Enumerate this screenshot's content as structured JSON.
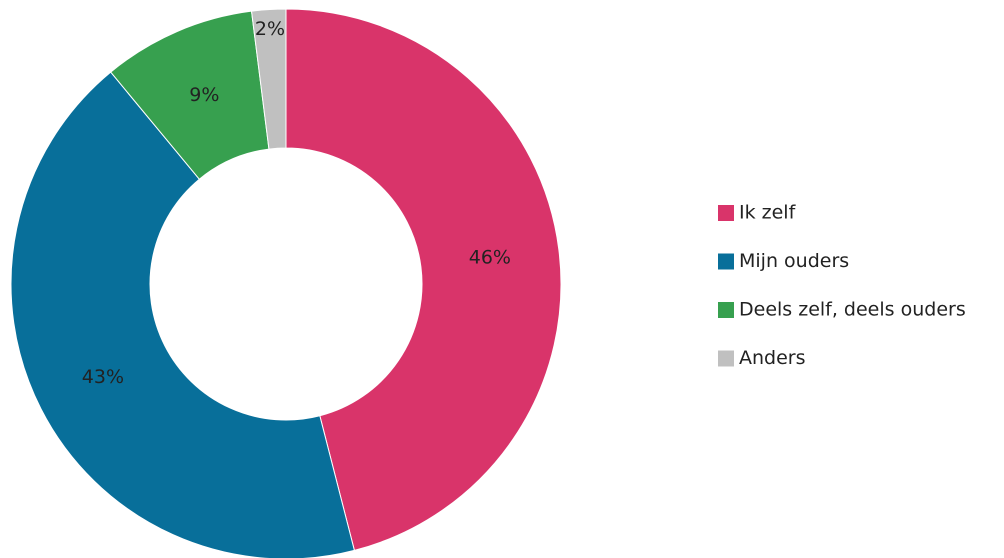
{
  "chart_data": {
    "type": "donut",
    "categories": [
      "Ik zelf",
      "Mijn ouders",
      "Deels zelf, deels ouders",
      "Anders"
    ],
    "values": [
      46,
      43,
      9,
      2
    ],
    "value_labels": [
      "46%",
      "43%",
      "9%",
      "2%"
    ],
    "colors": [
      "#d9346a",
      "#086f9a",
      "#37a04f",
      "#c0c0c0"
    ],
    "legend": "right"
  }
}
